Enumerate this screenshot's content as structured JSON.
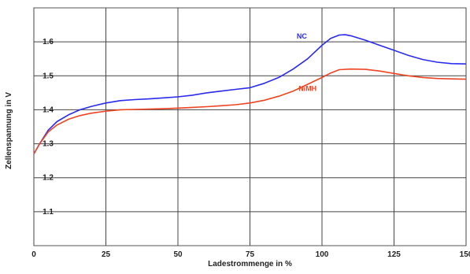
{
  "chart_data": {
    "type": "line",
    "title": "",
    "xlabel": "Ladestrommenge in %",
    "ylabel": "Zellenspannung in V",
    "xlim": [
      0,
      150
    ],
    "ylim": [
      1.0,
      1.7
    ],
    "x_ticks": [
      0,
      25,
      50,
      75,
      100,
      125,
      150
    ],
    "x_tick_labels": [
      "0",
      "25",
      "50",
      "75",
      "100",
      "125",
      "150"
    ],
    "y_ticks": [
      1.1,
      1.2,
      1.3,
      1.4,
      1.5,
      1.6
    ],
    "y_tick_labels": [
      "1.1",
      "1.2",
      "1.3",
      "1.4",
      "1.5",
      "1.6"
    ],
    "grid": true,
    "legend": "inline",
    "series": [
      {
        "name": "NC",
        "color": "#2a2aee",
        "x": [
          0,
          2,
          5,
          8,
          12,
          16,
          20,
          25,
          30,
          35,
          40,
          45,
          50,
          55,
          60,
          65,
          70,
          75,
          80,
          85,
          90,
          95,
          100,
          103,
          106,
          108,
          110,
          115,
          120,
          125,
          130,
          135,
          140,
          145,
          150
        ],
        "y": [
          1.27,
          1.3,
          1.34,
          1.365,
          1.385,
          1.4,
          1.41,
          1.42,
          1.427,
          1.43,
          1.432,
          1.435,
          1.438,
          1.443,
          1.45,
          1.455,
          1.46,
          1.465,
          1.478,
          1.495,
          1.52,
          1.55,
          1.59,
          1.61,
          1.62,
          1.621,
          1.618,
          1.605,
          1.59,
          1.575,
          1.56,
          1.548,
          1.54,
          1.536,
          1.535
        ]
      },
      {
        "name": "NiMH",
        "color": "#ee4422",
        "x": [
          0,
          2,
          5,
          8,
          12,
          16,
          20,
          25,
          30,
          35,
          40,
          45,
          50,
          55,
          60,
          65,
          70,
          75,
          80,
          85,
          90,
          95,
          100,
          103,
          106,
          110,
          115,
          120,
          125,
          130,
          135,
          140,
          145,
          150
        ],
        "y": [
          1.27,
          1.3,
          1.335,
          1.355,
          1.372,
          1.383,
          1.39,
          1.396,
          1.4,
          1.401,
          1.402,
          1.403,
          1.405,
          1.407,
          1.409,
          1.412,
          1.415,
          1.42,
          1.428,
          1.44,
          1.455,
          1.475,
          1.495,
          1.508,
          1.518,
          1.52,
          1.519,
          1.514,
          1.507,
          1.5,
          1.495,
          1.492,
          1.491,
          1.49
        ]
      }
    ]
  }
}
